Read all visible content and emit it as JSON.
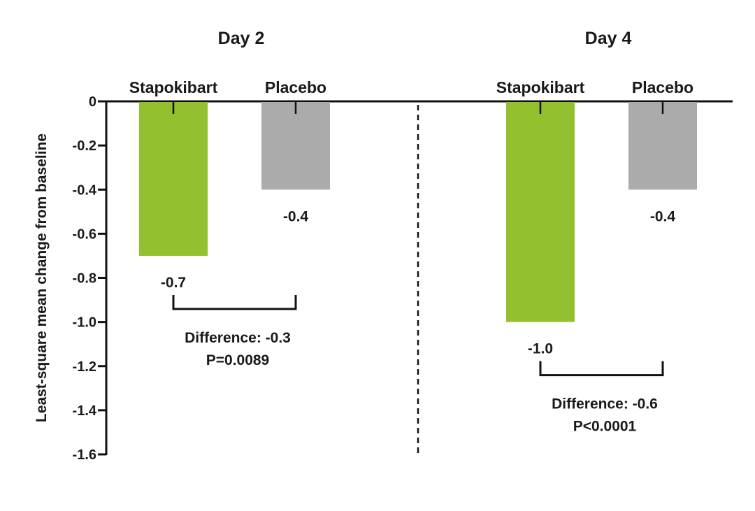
{
  "chart_data": {
    "type": "bar",
    "ylabel": "Least-square mean change from baseline",
    "ylim": [
      -1.6,
      0
    ],
    "yticks": [
      "0",
      "-0.2",
      "-0.4",
      "-0.6",
      "-0.8",
      "-1.0",
      "-1.2",
      "-1.4",
      "-1.6"
    ],
    "ytick_values": [
      0,
      -0.2,
      -0.4,
      -0.6,
      -0.8,
      -1.0,
      -1.2,
      -1.4,
      -1.6
    ],
    "colors": {
      "Stapokibart": "#92c02e",
      "Placebo": "#ababab"
    },
    "panels": [
      {
        "title": "Day 2",
        "categories": [
          "Stapokibart",
          "Placebo"
        ],
        "values": [
          -0.7,
          -0.4
        ],
        "value_labels": [
          "-0.7",
          "-0.4"
        ],
        "difference": "Difference: -0.3",
        "p_value": "P=0.0089"
      },
      {
        "title": "Day 4",
        "categories": [
          "Stapokibart",
          "Placebo"
        ],
        "values": [
          -1.0,
          -0.4
        ],
        "value_labels": [
          "-1.0",
          "-0.4"
        ],
        "difference": "Difference: -0.6",
        "p_value": "P<0.0001"
      }
    ]
  }
}
